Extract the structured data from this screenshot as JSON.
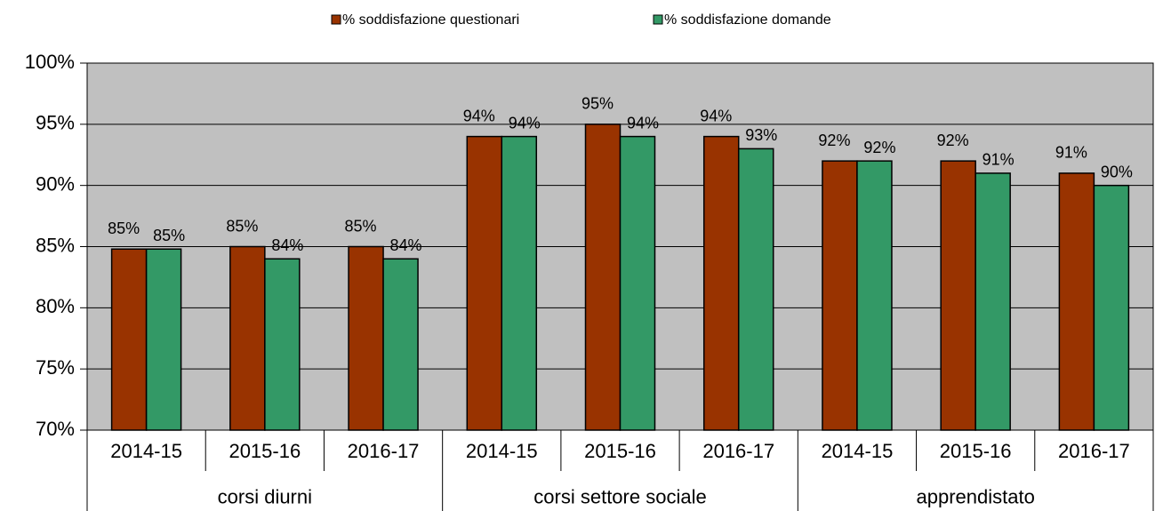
{
  "chart_data": {
    "type": "bar",
    "groups": [
      {
        "name": "corsi diurni",
        "categories": [
          "2014-15",
          "2015-16",
          "2016-17"
        ]
      },
      {
        "name": "corsi settore sociale",
        "categories": [
          "2014-15",
          "2015-16",
          "2016-17"
        ]
      },
      {
        "name": "apprendistato",
        "categories": [
          "2014-15",
          "2015-16",
          "2016-17"
        ]
      }
    ],
    "series": [
      {
        "name": "% soddisfazione questionari",
        "color": "#993300",
        "values": [
          84.8,
          85,
          85,
          94,
          95,
          94,
          92,
          92,
          91
        ],
        "value_labels": [
          "85%",
          "85%",
          "85%",
          "94%",
          "95%",
          "94%",
          "92%",
          "92%",
          "91%"
        ]
      },
      {
        "name": "% soddisfazione domande",
        "color": "#339966",
        "values": [
          84.8,
          84,
          84,
          94,
          94,
          93,
          92,
          91,
          90
        ],
        "value_labels": [
          "85%",
          "84%",
          "84%",
          "94%",
          "94%",
          "93%",
          "92%",
          "91%",
          "90%"
        ]
      }
    ],
    "ylim": [
      70,
      100
    ],
    "yticks": [
      {
        "value": 70,
        "label": "70%"
      },
      {
        "value": 75,
        "label": "75%"
      },
      {
        "value": 80,
        "label": "80%"
      },
      {
        "value": 85,
        "label": "85%"
      },
      {
        "value": 90,
        "label": "90%"
      },
      {
        "value": 95,
        "label": "95%"
      },
      {
        "value": 100,
        "label": "100%"
      }
    ],
    "grid": true,
    "legend": "top",
    "plot_background": "#c0c0c0"
  }
}
